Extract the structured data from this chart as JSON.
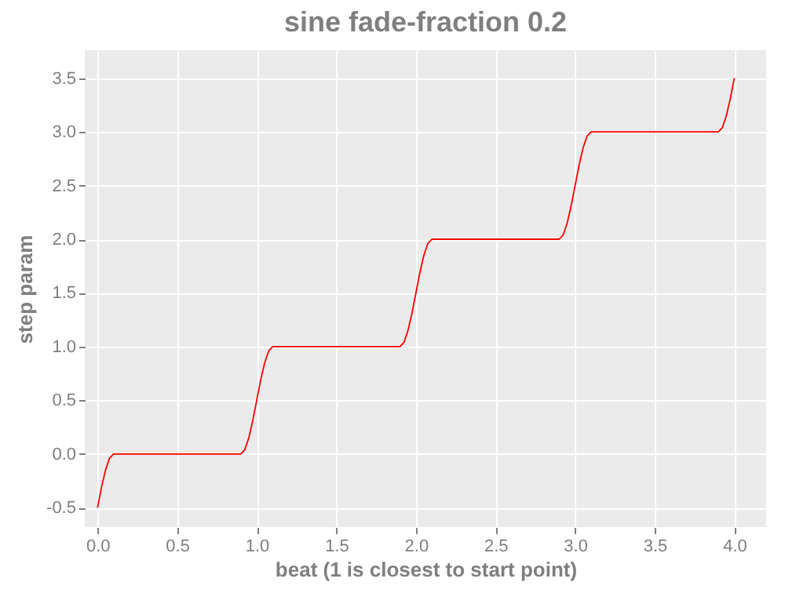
{
  "chart_data": {
    "type": "line",
    "title": "sine fade-fraction 0.2",
    "xlabel": "beat (1 is closest to start point)",
    "ylabel": "step param",
    "x": [
      0,
      0.025,
      0.05,
      0.075,
      0.1,
      0.9,
      0.925,
      0.95,
      0.975,
      1,
      1.025,
      1.05,
      1.075,
      1.1,
      1.9,
      1.925,
      1.95,
      1.975,
      2,
      2.025,
      2.05,
      2.075,
      2.1,
      2.9,
      2.925,
      2.95,
      2.975,
      3,
      3.025,
      3.05,
      3.075,
      3.1,
      3.9,
      3.925,
      3.95,
      3.975,
      4
    ],
    "series": [
      {
        "color": "#ff0000",
        "values": [
          -0.5,
          -0.31,
          -0.15,
          -0.04,
          0,
          0,
          0.04,
          0.15,
          0.31,
          0.5,
          0.69,
          0.85,
          0.96,
          1,
          1,
          1.04,
          1.15,
          1.31,
          1.5,
          1.69,
          1.85,
          1.96,
          2,
          2,
          2.04,
          2.15,
          2.31,
          2.5,
          2.69,
          2.85,
          2.96,
          3,
          3,
          3.04,
          3.15,
          3.31,
          3.5
        ]
      }
    ],
    "xlim": [
      -0.08,
      4.2
    ],
    "ylim": [
      -0.68,
      3.76
    ],
    "xticks": [
      {
        "value": 0,
        "label": "0.0"
      },
      {
        "value": 0.5,
        "label": "0.5"
      },
      {
        "value": 1,
        "label": "1.0"
      },
      {
        "value": 1.5,
        "label": "1.5"
      },
      {
        "value": 2,
        "label": "2.0"
      },
      {
        "value": 2.5,
        "label": "2.5"
      },
      {
        "value": 3,
        "label": "3.0"
      },
      {
        "value": 3.5,
        "label": "3.5"
      },
      {
        "value": 4,
        "label": "4.0"
      }
    ],
    "yticks": [
      {
        "value": -0.5,
        "label": "-0.5"
      },
      {
        "value": 0,
        "label": "0.0"
      },
      {
        "value": 0.5,
        "label": "0.5"
      },
      {
        "value": 1,
        "label": "1.0"
      },
      {
        "value": 1.5,
        "label": "1.5"
      },
      {
        "value": 2,
        "label": "2.0"
      },
      {
        "value": 2.5,
        "label": "2.5"
      },
      {
        "value": 3,
        "label": "3.0"
      },
      {
        "value": 3.5,
        "label": "3.5"
      }
    ],
    "grid": true
  }
}
